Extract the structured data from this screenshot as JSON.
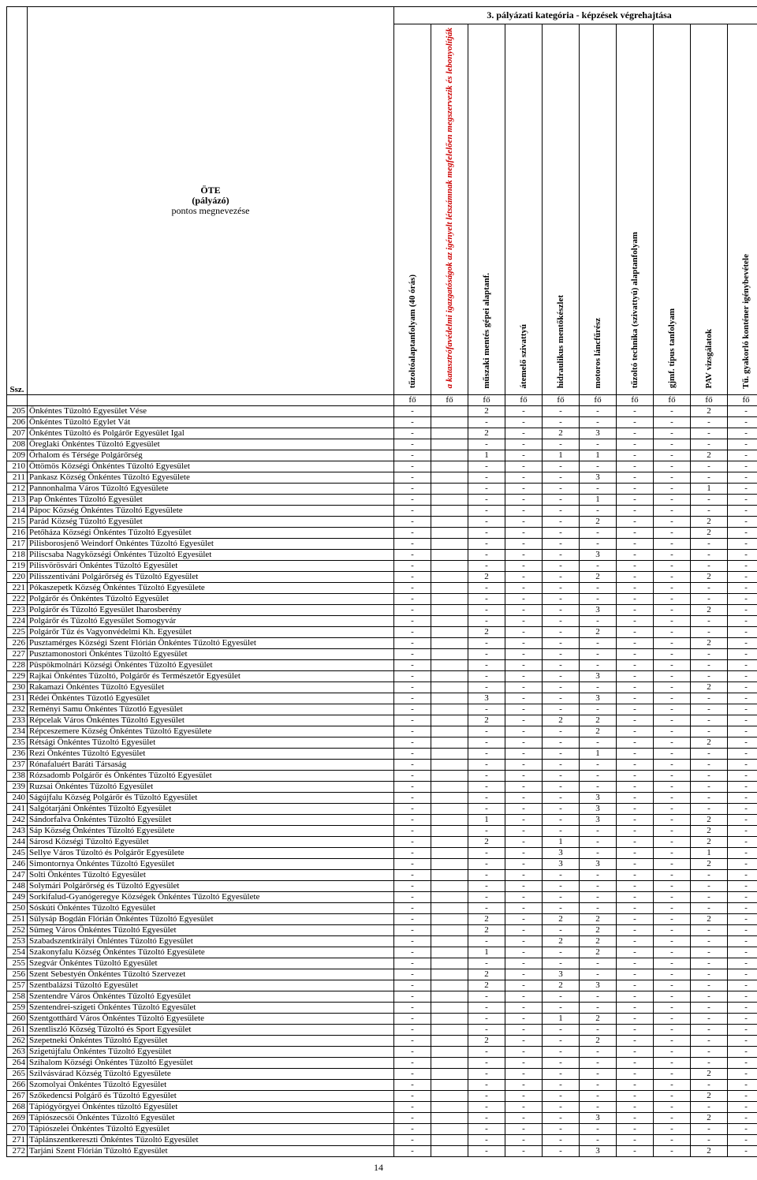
{
  "header": {
    "ssz_label": "Ssz.",
    "ote_line1": "ÖTE",
    "ote_line2": "(pályázó)",
    "ote_line3": "pontos megnevezése",
    "category_title": "3. pályázati kategória - képzések végrehajtása",
    "columns": [
      {
        "label": "tűzoltóalaptanfolyam (40 órás)",
        "red": false
      },
      {
        "label": "a katasztrófavédelmi igazgatóságok az igényelt létszámnak megfelelően megszervezik és lebonyolítják",
        "red": true
      },
      {
        "label": "műszaki mentés gépei alaptanf.",
        "red": false
      },
      {
        "label": "átemelő szivattyú",
        "red": false
      },
      {
        "label": "hidraulikus mentőkészlet",
        "red": false
      },
      {
        "label": "motoros láncfűrész",
        "red": false
      },
      {
        "label": "tűzoltó technika (szivattyú) alaptanfolyam",
        "red": false
      },
      {
        "label": "gjmf. típus tanfolyam",
        "red": false
      },
      {
        "label": "PAV vizsgálatok",
        "red": false
      },
      {
        "label": "Tű. gyakorló konténer igénybevétele",
        "red": false
      }
    ],
    "unit": "fő"
  },
  "rows": [
    {
      "n": 205,
      "name": "Önkéntes Tűzoltó Egyesület Vése",
      "v": [
        "-",
        "",
        "2",
        "-",
        "-",
        "-",
        "-",
        "-",
        "2",
        "-"
      ]
    },
    {
      "n": 206,
      "name": "Önkéntes Tűzoltó Egylet Vát",
      "v": [
        "-",
        "",
        "-",
        "-",
        "-",
        "-",
        "-",
        "-",
        "-",
        "-"
      ]
    },
    {
      "n": 207,
      "name": "Önkéntes Tűzoltó és Polgárőr Egyesület Igal",
      "v": [
        "-",
        "",
        "2",
        "-",
        "2",
        "3",
        "-",
        "-",
        "-",
        "-"
      ]
    },
    {
      "n": 208,
      "name": "Öreglaki Önkéntes Tűzoltó Egyesület",
      "v": [
        "-",
        "",
        "-",
        "-",
        "-",
        "-",
        "-",
        "-",
        "-",
        "-"
      ]
    },
    {
      "n": 209,
      "name": "Őrhalom és Térsége Polgárőrség",
      "v": [
        "-",
        "",
        "1",
        "-",
        "1",
        "1",
        "-",
        "-",
        "2",
        "-"
      ]
    },
    {
      "n": 210,
      "name": "Öttömös Községi Önkéntes Tűzoltó Egyesület",
      "v": [
        "-",
        "",
        "-",
        "-",
        "-",
        "-",
        "-",
        "-",
        "-",
        "-"
      ]
    },
    {
      "n": 211,
      "name": "Pankasz Község Önkéntes Tűzoltó Egyesülete",
      "v": [
        "-",
        "",
        "-",
        "-",
        "-",
        "3",
        "-",
        "-",
        "-",
        "-"
      ]
    },
    {
      "n": 212,
      "name": "Pannonhalma Város Tűzoltó Egyesülete",
      "v": [
        "-",
        "",
        "-",
        "-",
        "-",
        "-",
        "-",
        "-",
        "1",
        "-"
      ]
    },
    {
      "n": 213,
      "name": "Pap Önkéntes Tűzoltó Egyesület",
      "v": [
        "-",
        "",
        "-",
        "-",
        "-",
        "1",
        "-",
        "-",
        "-",
        "-"
      ]
    },
    {
      "n": 214,
      "name": "Pápoc Község Önkéntes Tűzoltó Egyesülete",
      "v": [
        "-",
        "",
        "-",
        "-",
        "-",
        "-",
        "-",
        "-",
        "-",
        "-"
      ]
    },
    {
      "n": 215,
      "name": "Parád Község Tűzoltó Egyesület",
      "v": [
        "-",
        "",
        "-",
        "-",
        "-",
        "2",
        "-",
        "-",
        "2",
        "-"
      ]
    },
    {
      "n": 216,
      "name": "Petőháza Községi Önkéntes Tűzoltó Egyesület",
      "v": [
        "-",
        "",
        "-",
        "-",
        "-",
        "-",
        "-",
        "-",
        "2",
        "-"
      ]
    },
    {
      "n": 217,
      "name": "Pilisborosjenő Weindorf Önkéntes Tűzoltó Egyesület",
      "v": [
        "-",
        "",
        "-",
        "-",
        "-",
        "-",
        "-",
        "-",
        "-",
        "-"
      ]
    },
    {
      "n": 218,
      "name": "Piliscsaba Nagyközségi Önkéntes Tűzoltó Egyesület",
      "v": [
        "-",
        "",
        "-",
        "-",
        "-",
        "3",
        "-",
        "-",
        "-",
        "-"
      ]
    },
    {
      "n": 219,
      "name": "Pilisvörösvári Önkéntes Tűzoltó Egyesület",
      "v": [
        "-",
        "",
        "-",
        "-",
        "-",
        "-",
        "-",
        "-",
        "-",
        "-"
      ]
    },
    {
      "n": 220,
      "name": "Pilisszentiváni Polgárőrség és Tűzoltó Egyesület",
      "v": [
        "-",
        "",
        "2",
        "-",
        "-",
        "2",
        "-",
        "-",
        "2",
        "-"
      ]
    },
    {
      "n": 221,
      "name": "Pókaszepetk Község Önkéntes Tűzoltó Egyesülete",
      "v": [
        "-",
        "",
        "-",
        "-",
        "-",
        "-",
        "-",
        "-",
        "-",
        "-"
      ]
    },
    {
      "n": 222,
      "name": "Polgárőr és Önkéntes Tűzoltó Egyesület",
      "v": [
        "-",
        "",
        "-",
        "-",
        "-",
        "-",
        "-",
        "-",
        "-",
        "-"
      ]
    },
    {
      "n": 223,
      "name": "Polgárőr és Tűzoltó Egyesület Iharosberény",
      "v": [
        "-",
        "",
        "-",
        "-",
        "-",
        "3",
        "-",
        "-",
        "2",
        "-"
      ]
    },
    {
      "n": 224,
      "name": "Polgárőr és Tűzoltó Egyesület Somogyvár",
      "v": [
        "-",
        "",
        "-",
        "-",
        "-",
        "-",
        "-",
        "-",
        "-",
        "-"
      ]
    },
    {
      "n": 225,
      "name": "Polgárőr Tűz és Vagyonvédelmi Kh. Egyesület",
      "v": [
        "-",
        "",
        "2",
        "-",
        "-",
        "2",
        "-",
        "-",
        "-",
        "-"
      ]
    },
    {
      "n": 226,
      "name": "Pusztamérges Községi Szent Flórián Önkéntes Tűzoltó Egyesület",
      "v": [
        "-",
        "",
        "-",
        "-",
        "-",
        "-",
        "-",
        "-",
        "2",
        "-"
      ]
    },
    {
      "n": 227,
      "name": "Pusztamonostori Önkéntes Tűzoltó Egyesület",
      "v": [
        "-",
        "",
        "-",
        "-",
        "-",
        "-",
        "-",
        "-",
        "-",
        "-"
      ]
    },
    {
      "n": 228,
      "name": "Püspökmolnári Községi Önkéntes Tűzoltó Egyesület",
      "v": [
        "-",
        "",
        "-",
        "-",
        "-",
        "-",
        "-",
        "-",
        "-",
        "-"
      ]
    },
    {
      "n": 229,
      "name": "Rajkai Önkéntes Tűzoltó, Polgárőr és Természetőr Egyesület",
      "v": [
        "-",
        "",
        "-",
        "-",
        "-",
        "3",
        "-",
        "-",
        "-",
        "-"
      ]
    },
    {
      "n": 230,
      "name": "Rakamazi Önkéntes Tűzoltó Egyesület",
      "v": [
        "-",
        "",
        "-",
        "-",
        "-",
        "-",
        "-",
        "-",
        "2",
        "-"
      ]
    },
    {
      "n": 231,
      "name": "Rédei Önkéntes Tűzotló Egyesület",
      "v": [
        "-",
        "",
        "3",
        "-",
        "-",
        "3",
        "-",
        "-",
        "-",
        "-"
      ]
    },
    {
      "n": 232,
      "name": "Reményi Samu Önkéntes Tűzotló Egyesület",
      "v": [
        "-",
        "",
        "-",
        "-",
        "-",
        "-",
        "-",
        "-",
        "-",
        "-"
      ]
    },
    {
      "n": 233,
      "name": "Répcelak Város Önkéntes Tűzoltó Egyesület",
      "v": [
        "-",
        "",
        "2",
        "-",
        "2",
        "2",
        "-",
        "-",
        "-",
        "-"
      ]
    },
    {
      "n": 234,
      "name": "Répceszemere Község Önkéntes Tűzoltó Egyesülete",
      "v": [
        "-",
        "",
        "-",
        "-",
        "-",
        "2",
        "-",
        "-",
        "-",
        "-"
      ]
    },
    {
      "n": 235,
      "name": "Rétsági Önkéntes Tűzoltó Egyesület",
      "v": [
        "-",
        "",
        "-",
        "-",
        "-",
        "-",
        "-",
        "-",
        "2",
        "-"
      ]
    },
    {
      "n": 236,
      "name": "Rezi Önkéntes Tűzoltó Egyesület",
      "v": [
        "-",
        "",
        "-",
        "-",
        "-",
        "1",
        "-",
        "-",
        "-",
        "-"
      ]
    },
    {
      "n": 237,
      "name": "Rónafaluért Baráti Társaság",
      "v": [
        "-",
        "",
        "-",
        "-",
        "-",
        "-",
        "-",
        "-",
        "-",
        "-"
      ]
    },
    {
      "n": 238,
      "name": "Rózsadomb Polgárőr és Önkéntes Tűzoltó Egyesület",
      "v": [
        "-",
        "",
        "-",
        "-",
        "-",
        "-",
        "-",
        "-",
        "-",
        "-"
      ]
    },
    {
      "n": 239,
      "name": "Ruzsai Önkéntes Tűzoltó Egyesület",
      "v": [
        "-",
        "",
        "-",
        "-",
        "-",
        "-",
        "-",
        "-",
        "-",
        "-"
      ]
    },
    {
      "n": 240,
      "name": "Ságújfalu Község Polgárőr és Tűzoltó Egyesület",
      "v": [
        "-",
        "",
        "-",
        "-",
        "-",
        "3",
        "-",
        "-",
        "-",
        "-"
      ]
    },
    {
      "n": 241,
      "name": "Salgótarjáni Önkéntes Tűzoltó Egyesület",
      "v": [
        "-",
        "",
        "-",
        "-",
        "-",
        "3",
        "-",
        "-",
        "-",
        "-"
      ]
    },
    {
      "n": 242,
      "name": "Sándorfalva Önkéntes Tűzoltó Egyesület",
      "v": [
        "-",
        "",
        "1",
        "-",
        "-",
        "3",
        "-",
        "-",
        "2",
        "-"
      ]
    },
    {
      "n": 243,
      "name": "Sáp Község Önkéntes Tűzoltó Egyesülete",
      "v": [
        "-",
        "",
        "-",
        "-",
        "-",
        "-",
        "-",
        "-",
        "2",
        "-"
      ]
    },
    {
      "n": 244,
      "name": "Sárosd Községi Tűzoltó Egyesület",
      "v": [
        "-",
        "",
        "2",
        "-",
        "1",
        "-",
        "-",
        "-",
        "2",
        "-"
      ]
    },
    {
      "n": 245,
      "name": "Sellye Város Tűzoltó és Polgárőr Egyesülete",
      "v": [
        "-",
        "",
        "-",
        "-",
        "3",
        "-",
        "-",
        "-",
        "1",
        "-"
      ]
    },
    {
      "n": 246,
      "name": "Simontornya Önkéntes Tűzoltó Egyesület",
      "v": [
        "-",
        "",
        "-",
        "-",
        "3",
        "3",
        "-",
        "-",
        "2",
        "-"
      ]
    },
    {
      "n": 247,
      "name": "Solti Önkéntes Tűzoltó Egyesület",
      "v": [
        "-",
        "",
        "-",
        "-",
        "-",
        "-",
        "-",
        "-",
        "-",
        "-"
      ]
    },
    {
      "n": 248,
      "name": "Solymári Polgárőrség és Tűzoltó Egyesület",
      "v": [
        "-",
        "",
        "-",
        "-",
        "-",
        "-",
        "-",
        "-",
        "-",
        "-"
      ]
    },
    {
      "n": 249,
      "name": "Sorkifalud-Gyanógeregye Községek Önkéntes Tűzoltó Egyesülete",
      "v": [
        "-",
        "",
        "-",
        "-",
        "-",
        "-",
        "-",
        "-",
        "-",
        "-"
      ]
    },
    {
      "n": 250,
      "name": "Sóskúti Önkéntes Tűzoltó Egyesület",
      "v": [
        "-",
        "",
        "-",
        "-",
        "-",
        "-",
        "-",
        "-",
        "-",
        "-"
      ]
    },
    {
      "n": 251,
      "name": "Sülysáp Bogdán Flórián Önkéntes Tűzoltó Egyesület",
      "v": [
        "-",
        "",
        "2",
        "-",
        "2",
        "2",
        "-",
        "-",
        "2",
        "-"
      ]
    },
    {
      "n": 252,
      "name": "Sümeg Város Önkéntes Tűzoltó Egyesület",
      "v": [
        "-",
        "",
        "2",
        "-",
        "-",
        "2",
        "-",
        "-",
        "-",
        "-"
      ]
    },
    {
      "n": 253,
      "name": "Szabadszentkirályi Önléntes Tűzoltó Egyesület",
      "v": [
        "-",
        "",
        "-",
        "-",
        "2",
        "2",
        "-",
        "-",
        "-",
        "-"
      ]
    },
    {
      "n": 254,
      "name": "Szakonyfalu Község Önkéntes Tűzoltó Egyesülete",
      "v": [
        "-",
        "",
        "1",
        "-",
        "-",
        "2",
        "-",
        "-",
        "-",
        "-"
      ]
    },
    {
      "n": 255,
      "name": "Szegvár Önkéntes Tűzoltó Egyesület",
      "v": [
        "-",
        "",
        "-",
        "-",
        "-",
        "-",
        "-",
        "-",
        "-",
        "-"
      ]
    },
    {
      "n": 256,
      "name": "Szent Sebestyén Önkéntes Tűzoltó Szervezet",
      "v": [
        "-",
        "",
        "2",
        "-",
        "3",
        "-",
        "-",
        "-",
        "-",
        "-"
      ]
    },
    {
      "n": 257,
      "name": "Szentbalázsi Tűzoltó Egyesület",
      "v": [
        "-",
        "",
        "2",
        "-",
        "2",
        "3",
        "-",
        "-",
        "-",
        "-"
      ]
    },
    {
      "n": 258,
      "name": "Szentendre Város Önkéntes Tűzoltó Egyesület",
      "v": [
        "-",
        "",
        "-",
        "-",
        "-",
        "-",
        "-",
        "-",
        "-",
        "-"
      ]
    },
    {
      "n": 259,
      "name": "Szentendrei-szigeti Önkéntes Tűzoltó Egyesület",
      "v": [
        "-",
        "",
        "-",
        "-",
        "-",
        "-",
        "-",
        "-",
        "-",
        "-"
      ]
    },
    {
      "n": 260,
      "name": "Szentgotthárd Város Önkéntes Tűzoltó Egyesülete",
      "v": [
        "-",
        "",
        "-",
        "-",
        "1",
        "2",
        "-",
        "-",
        "-",
        "-"
      ]
    },
    {
      "n": 261,
      "name": "Szentliszló Község Tűzoltó és Sport Egyesület",
      "v": [
        "-",
        "",
        "-",
        "-",
        "-",
        "-",
        "-",
        "-",
        "-",
        "-"
      ]
    },
    {
      "n": 262,
      "name": "Szepetneki Önkéntes Tűzoltó Egyesület",
      "v": [
        "-",
        "",
        "2",
        "-",
        "-",
        "2",
        "-",
        "-",
        "-",
        "-"
      ]
    },
    {
      "n": 263,
      "name": "Szigetújfalu Önkéntes Tűzoltó Egyesület",
      "v": [
        "-",
        "",
        "-",
        "-",
        "-",
        "-",
        "-",
        "-",
        "-",
        "-"
      ]
    },
    {
      "n": 264,
      "name": "Szihalom Községi Önkéntes Tűzoltó Egyesület",
      "v": [
        "-",
        "",
        "-",
        "-",
        "-",
        "-",
        "-",
        "-",
        "-",
        "-"
      ]
    },
    {
      "n": 265,
      "name": "Szilvásvárad Község Tűzoltó Egyesülete",
      "v": [
        "-",
        "",
        "-",
        "-",
        "-",
        "-",
        "-",
        "-",
        "2",
        "-"
      ]
    },
    {
      "n": 266,
      "name": "Szomolyai Önkéntes Tűzoltó Egyesület",
      "v": [
        "-",
        "",
        "-",
        "-",
        "-",
        "-",
        "-",
        "-",
        "-",
        "-"
      ]
    },
    {
      "n": 267,
      "name": "Szőkedencsi Polgárő és Tűzoltó Egyesület",
      "v": [
        "-",
        "",
        "-",
        "-",
        "-",
        "-",
        "-",
        "-",
        "2",
        "-"
      ]
    },
    {
      "n": 268,
      "name": "Tápiógyörgyei Önkéntes tűzoltó Egyesület",
      "v": [
        "-",
        "",
        "-",
        "-",
        "-",
        "-",
        "-",
        "-",
        "-",
        "-"
      ]
    },
    {
      "n": 269,
      "name": "Tápiószecsői Önkéntes Tűzoltó Egyesület",
      "v": [
        "-",
        "",
        "-",
        "-",
        "-",
        "3",
        "-",
        "-",
        "2",
        "-"
      ]
    },
    {
      "n": 270,
      "name": "Tápiószelei Önkéntes Tűzoltó Egyesület",
      "v": [
        "-",
        "",
        "-",
        "-",
        "-",
        "-",
        "-",
        "-",
        "-",
        "-"
      ]
    },
    {
      "n": 271,
      "name": "Táplánszentkereszti Önkéntes Tűzoltó Egyesület",
      "v": [
        "-",
        "",
        "-",
        "-",
        "-",
        "-",
        "-",
        "-",
        "-",
        "-"
      ]
    },
    {
      "n": 272,
      "name": "Tarjáni Szent Flórián Tűzoltó Egyesület",
      "v": [
        "-",
        "",
        "-",
        "-",
        "-",
        "3",
        "-",
        "-",
        "2",
        "-"
      ]
    }
  ],
  "page_number": "14",
  "layout": {
    "col_widths": {
      "ssz": 26,
      "name": 465,
      "data": 47
    }
  }
}
